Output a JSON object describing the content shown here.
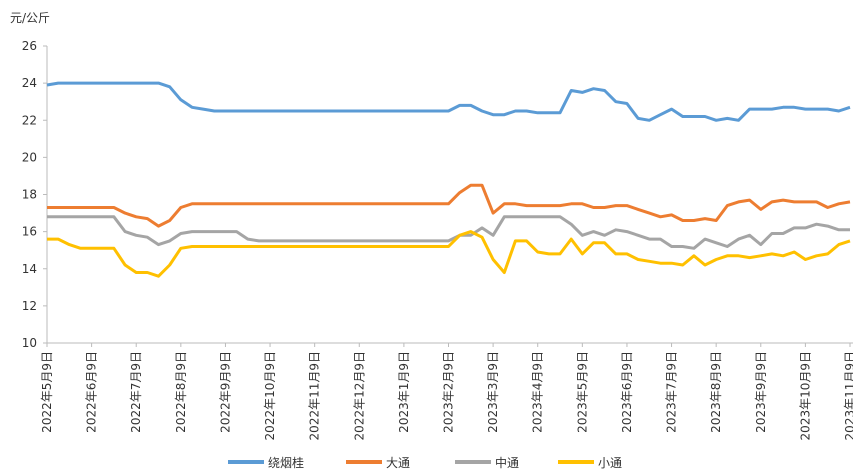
{
  "chart_data": {
    "type": "line",
    "y_label": "元/公斤",
    "categories": [
      "2022年5月9日",
      null,
      null,
      null,
      "2022年6月9日",
      null,
      null,
      null,
      "2022年7月9日",
      null,
      null,
      null,
      "2022年8月9日",
      null,
      null,
      null,
      "2022年9月9日",
      null,
      null,
      null,
      "2022年10月9日",
      null,
      null,
      null,
      "2022年11月9日",
      null,
      null,
      null,
      "2022年12月9日",
      null,
      null,
      null,
      "2023年1月9日",
      null,
      null,
      null,
      "2023年2月9日",
      null,
      null,
      null,
      "2023年3月9日",
      null,
      null,
      null,
      "2023年4月9日",
      null,
      null,
      null,
      "2023年5月9日",
      null,
      null,
      null,
      "2023年6月9日",
      null,
      null,
      null,
      "2023年7月9日",
      null,
      null,
      null,
      "2023年8月9日",
      null,
      null,
      null,
      "2023年9月9日",
      null,
      null,
      null,
      "2023年10月9日",
      null,
      null,
      null,
      "2023年11月9日"
    ],
    "series": [
      {
        "name": "绕烟桂",
        "color": "#5b9bd5",
        "values": [
          23.9,
          24,
          24,
          24,
          24,
          24,
          24,
          24,
          24,
          24,
          24,
          23.8,
          23.1,
          22.7,
          22.6,
          22.5,
          22.5,
          22.5,
          22.5,
          22.5,
          22.5,
          22.5,
          22.5,
          22.5,
          22.5,
          22.5,
          22.5,
          22.5,
          22.5,
          22.5,
          22.5,
          22.5,
          22.5,
          22.5,
          22.5,
          22.5,
          22.5,
          22.8,
          22.8,
          22.5,
          22.3,
          22.3,
          22.5,
          22.5,
          22.4,
          22.4,
          22.4,
          23.6,
          23.5,
          23.7,
          23.6,
          23.0,
          22.9,
          22.1,
          22.0,
          22.3,
          22.6,
          22.2,
          22.2,
          22.2,
          22.0,
          22.1,
          22.0,
          22.6,
          22.6,
          22.6,
          22.7,
          22.7,
          22.6,
          22.6,
          22.6,
          22.5,
          22.7
        ]
      },
      {
        "name": "大通",
        "color": "#ed7d31",
        "values": [
          17.3,
          17.3,
          17.3,
          17.3,
          17.3,
          17.3,
          17.3,
          17.0,
          16.8,
          16.7,
          16.3,
          16.6,
          17.3,
          17.5,
          17.5,
          17.5,
          17.5,
          17.5,
          17.5,
          17.5,
          17.5,
          17.5,
          17.5,
          17.5,
          17.5,
          17.5,
          17.5,
          17.5,
          17.5,
          17.5,
          17.5,
          17.5,
          17.5,
          17.5,
          17.5,
          17.5,
          17.5,
          18.1,
          18.5,
          18.5,
          17.0,
          17.5,
          17.5,
          17.4,
          17.4,
          17.4,
          17.4,
          17.5,
          17.5,
          17.3,
          17.3,
          17.4,
          17.4,
          17.2,
          17.0,
          16.8,
          16.9,
          16.6,
          16.6,
          16.7,
          16.6,
          17.4,
          17.6,
          17.7,
          17.2,
          17.6,
          17.7,
          17.6,
          17.6,
          17.6,
          17.3,
          17.5,
          17.6
        ]
      },
      {
        "name": "中通",
        "color": "#a5a5a5",
        "values": [
          16.8,
          16.8,
          16.8,
          16.8,
          16.8,
          16.8,
          16.8,
          16.0,
          15.8,
          15.7,
          15.3,
          15.5,
          15.9,
          16.0,
          16.0,
          16.0,
          16.0,
          16.0,
          15.6,
          15.5,
          15.5,
          15.5,
          15.5,
          15.5,
          15.5,
          15.5,
          15.5,
          15.5,
          15.5,
          15.5,
          15.5,
          15.5,
          15.5,
          15.5,
          15.5,
          15.5,
          15.5,
          15.8,
          15.8,
          16.2,
          15.8,
          16.8,
          16.8,
          16.8,
          16.8,
          16.8,
          16.8,
          16.4,
          15.8,
          16.0,
          15.8,
          16.1,
          16.0,
          15.8,
          15.6,
          15.6,
          15.2,
          15.2,
          15.1,
          15.6,
          15.4,
          15.2,
          15.6,
          15.8,
          15.3,
          15.9,
          15.9,
          16.2,
          16.2,
          16.4,
          16.3,
          16.1,
          16.1
        ]
      },
      {
        "name": "小通",
        "color": "#ffc000",
        "values": [
          15.6,
          15.6,
          15.3,
          15.1,
          15.1,
          15.1,
          15.1,
          14.2,
          13.8,
          13.8,
          13.6,
          14.2,
          15.1,
          15.2,
          15.2,
          15.2,
          15.2,
          15.2,
          15.2,
          15.2,
          15.2,
          15.2,
          15.2,
          15.2,
          15.2,
          15.2,
          15.2,
          15.2,
          15.2,
          15.2,
          15.2,
          15.2,
          15.2,
          15.2,
          15.2,
          15.2,
          15.2,
          15.8,
          16.0,
          15.7,
          14.5,
          13.8,
          15.5,
          15.5,
          14.9,
          14.8,
          14.8,
          15.6,
          14.8,
          15.4,
          15.4,
          14.8,
          14.8,
          14.5,
          14.4,
          14.3,
          14.3,
          14.2,
          14.7,
          14.2,
          14.5,
          14.7,
          14.7,
          14.6,
          14.7,
          14.8,
          14.7,
          14.9,
          14.5,
          14.7,
          14.8,
          15.3,
          15.5
        ]
      }
    ],
    "ylim": [
      10,
      26
    ],
    "yticks": [
      10,
      12,
      14,
      16,
      18,
      20,
      22,
      24,
      26
    ],
    "legend": "bottom"
  }
}
